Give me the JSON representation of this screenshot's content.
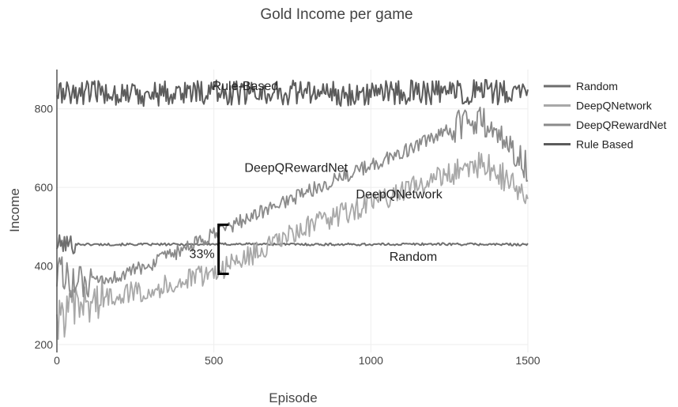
{
  "chart_data": {
    "type": "line",
    "title": "Gold Income per game",
    "xlabel": "Episode",
    "ylabel": "Income",
    "xlim": [
      0,
      1500
    ],
    "ylim": [
      180,
      900
    ],
    "xticks": [
      0,
      500,
      1000,
      1500
    ],
    "yticks": [
      200,
      400,
      600,
      800
    ],
    "grid": true,
    "legend_position": "top-right",
    "series": [
      {
        "name": "Random",
        "color": "#6e6e6e",
        "x": [
          0,
          50,
          100,
          200,
          400,
          600,
          800,
          1000,
          1200,
          1400,
          1500
        ],
        "y": [
          455,
          456,
          455,
          455,
          455,
          456,
          455,
          455,
          456,
          455,
          455
        ]
      },
      {
        "name": "DeepQNetwork",
        "color": "#a8a8a8",
        "x": [
          0,
          50,
          100,
          150,
          200,
          250,
          300,
          400,
          500,
          600,
          700,
          800,
          900,
          1000,
          1100,
          1200,
          1300,
          1350,
          1400,
          1450,
          1500
        ],
        "y": [
          260,
          290,
          305,
          320,
          330,
          335,
          340,
          360,
          385,
          420,
          460,
          500,
          530,
          560,
          590,
          620,
          650,
          660,
          640,
          610,
          570
        ]
      },
      {
        "name": "DeepQRewardNet",
        "color": "#8a8a8a",
        "x": [
          0,
          50,
          100,
          200,
          300,
          400,
          500,
          600,
          700,
          800,
          900,
          1000,
          1100,
          1200,
          1300,
          1350,
          1400,
          1450,
          1500
        ],
        "y": [
          390,
          360,
          350,
          375,
          405,
          440,
          480,
          520,
          555,
          590,
          625,
          655,
          690,
          725,
          765,
          770,
          740,
          700,
          650
        ]
      },
      {
        "name": "Rule Based",
        "color": "#5c5c5c",
        "x": [
          0,
          150,
          300,
          450,
          600,
          750,
          900,
          1050,
          1200,
          1350,
          1500
        ],
        "y": [
          840,
          842,
          838,
          844,
          840,
          843,
          839,
          842,
          840,
          843,
          838
        ]
      }
    ],
    "annotations": [
      {
        "text": "Rule-Based",
        "x": 600,
        "y": 848
      },
      {
        "text": "DeepQRewardNet",
        "x": 762,
        "y": 640
      },
      {
        "text": "DeepQNetwork",
        "x": 1090,
        "y": 572
      },
      {
        "text": "Random",
        "x": 1135,
        "y": 413
      },
      {
        "text": "33%",
        "x": 462,
        "y": 420
      }
    ],
    "bracket": {
      "x": 515,
      "y_low": 380,
      "y_high": 505
    }
  }
}
